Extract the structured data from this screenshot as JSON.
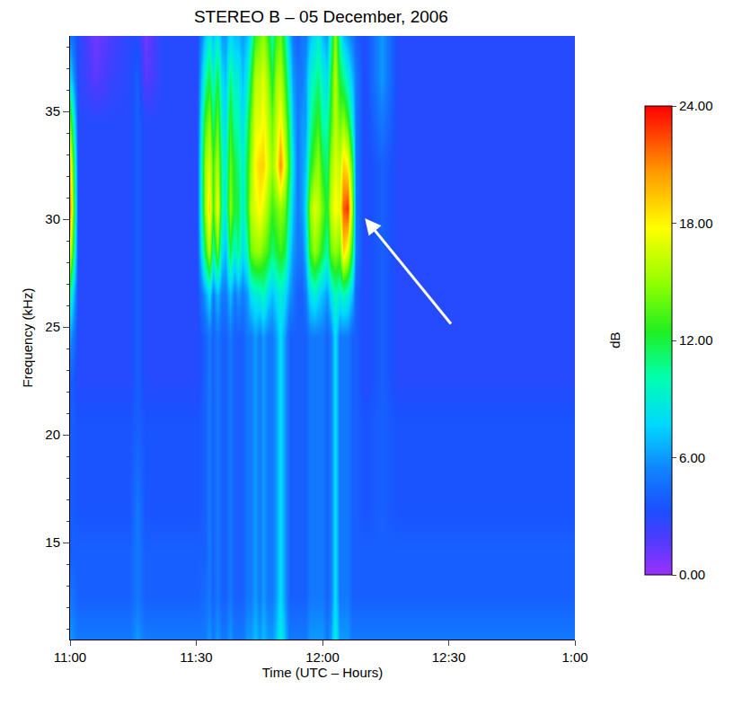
{
  "chart_data": {
    "type": "heatmap",
    "title": "STEREO B – 05 December, 2006",
    "x_label": "Time (UTC – Hours)",
    "y_label": "Frequency (kHz)",
    "x": [
      "2006-12-05 11:00",
      "2006-12-05 11:02",
      "2006-12-05 11:06",
      "2006-12-05 11:10",
      "2006-12-05 11:14",
      "2006-12-05 11:16",
      "2006-12-05 11:18",
      "2006-12-05 11:22",
      "2006-12-05 11:26",
      "2006-12-05 11:30",
      "2006-12-05 11:32",
      "2006-12-05 11:33",
      "2006-12-05 11:34",
      "2006-12-05 11:35",
      "2006-12-05 11:36",
      "2006-12-05 11:37",
      "2006-12-05 11:38",
      "2006-12-05 11:39",
      "2006-12-05 11:40",
      "2006-12-05 11:41",
      "2006-12-05 11:42",
      "2006-12-05 11:43",
      "2006-12-05 11:44",
      "2006-12-05 11:45",
      "2006-12-05 11:46",
      "2006-12-05 11:47",
      "2006-12-05 11:48",
      "2006-12-05 11:49",
      "2006-12-05 11:50",
      "2006-12-05 11:51",
      "2006-12-05 11:52",
      "2006-12-05 11:53",
      "2006-12-05 11:54",
      "2006-12-05 11:55",
      "2006-12-05 11:56",
      "2006-12-05 11:57",
      "2006-12-05 11:58",
      "2006-12-05 11:59",
      "2006-12-05 12:00",
      "2006-12-05 12:01",
      "2006-12-05 12:02",
      "2006-12-05 12:03",
      "2006-12-05 12:04",
      "2006-12-05 12:05",
      "2006-12-05 12:06",
      "2006-12-05 12:07",
      "2006-12-05 12:08",
      "2006-12-05 12:10",
      "2006-12-05 12:14",
      "2006-12-05 12:18",
      "2006-12-05 12:25",
      "2006-12-05 12:30",
      "2006-12-05 12:35",
      "2006-12-05 12:40",
      "2006-12-05 12:45",
      "2006-12-05 12:50",
      "2006-12-05 12:55",
      "2006-12-05 13:00"
    ],
    "y": [
      10.5,
      12.5,
      14.5,
      16.5,
      18.5,
      20.5,
      22.5,
      24.5,
      26.5,
      28.5,
      30.5,
      32.5,
      34.5,
      36.5,
      38.5
    ],
    "z": [
      [
        6,
        5,
        4,
        4,
        4,
        4,
        4,
        6,
        10,
        17,
        21,
        19,
        14,
        8,
        5
      ],
      [
        5,
        4,
        4,
        3.5,
        3.5,
        3.5,
        3,
        3,
        3,
        3,
        3,
        3,
        3,
        3,
        3
      ],
      [
        5,
        4,
        4,
        3.5,
        3.5,
        3.5,
        3,
        3,
        3,
        3,
        3,
        3,
        3,
        1.5,
        1
      ],
      [
        5,
        4,
        4,
        3.5,
        3.5,
        3.5,
        3,
        3,
        3,
        3,
        3,
        3,
        3,
        2.5,
        2
      ],
      [
        5,
        4,
        4,
        3.5,
        3.5,
        3.5,
        3,
        3,
        3,
        3,
        3,
        3,
        3,
        3,
        3
      ],
      [
        6,
        5,
        5,
        5,
        4.5,
        4,
        4,
        4,
        4,
        4,
        4,
        4,
        4,
        4,
        3
      ],
      [
        5,
        4,
        4,
        3.5,
        3.5,
        3.5,
        3,
        3,
        3,
        3,
        3,
        3,
        3,
        1.5,
        1
      ],
      [
        5,
        4,
        4,
        3.5,
        3.5,
        3.5,
        3,
        3,
        3,
        3,
        3,
        3,
        3,
        3,
        3
      ],
      [
        5,
        4,
        4,
        3.5,
        3.5,
        3.5,
        3,
        3,
        3,
        3,
        3,
        3,
        3,
        3,
        3
      ],
      [
        5,
        4,
        4,
        3.5,
        3.5,
        3.5,
        3,
        3,
        3,
        3,
        3,
        3,
        3,
        3,
        3
      ],
      [
        5,
        4.5,
        4,
        4,
        4,
        4,
        4,
        4,
        6,
        12,
        15,
        15,
        13,
        10,
        7
      ],
      [
        6,
        5,
        5,
        5,
        5,
        5,
        5,
        5,
        8,
        16,
        19,
        17,
        15,
        12,
        9
      ],
      [
        5,
        4,
        4,
        4,
        4,
        4,
        4,
        4,
        5,
        10,
        13,
        13,
        11,
        9,
        7
      ],
      [
        6,
        5,
        5,
        5,
        5,
        5,
        5,
        5,
        7,
        14,
        18,
        16,
        14,
        12,
        9
      ],
      [
        5,
        4,
        4,
        4,
        4,
        4,
        4,
        4,
        5,
        8,
        10,
        10,
        9,
        8,
        6
      ],
      [
        5,
        4,
        4,
        4,
        4,
        4,
        4,
        4,
        5,
        7,
        9,
        9,
        8,
        7,
        6
      ],
      [
        6,
        5,
        5,
        5,
        5,
        5,
        5,
        5,
        7,
        12,
        15,
        14,
        13,
        11,
        8
      ],
      [
        5,
        4,
        4,
        4,
        4,
        4,
        4,
        4,
        5,
        9,
        12,
        12,
        10,
        9,
        7
      ],
      [
        5,
        4,
        4,
        4,
        4,
        4,
        4,
        4,
        6,
        11,
        12,
        11,
        10,
        9,
        7
      ],
      [
        5,
        4,
        4,
        4,
        4,
        4,
        4,
        4,
        5,
        8,
        9,
        9,
        8,
        7,
        6
      ],
      [
        6,
        5,
        5,
        5,
        5,
        5,
        5,
        5,
        6,
        10,
        12,
        12,
        11,
        9,
        7
      ],
      [
        6,
        5,
        5,
        5,
        5,
        5,
        5,
        5,
        8,
        14,
        16,
        15,
        14,
        12,
        9
      ],
      [
        7,
        6,
        6,
        6,
        6,
        6,
        6,
        6,
        9,
        15,
        17,
        18,
        17,
        16,
        13
      ],
      [
        6,
        5,
        5,
        5,
        5,
        5,
        5,
        5,
        9,
        15,
        18,
        19,
        17,
        16,
        14
      ],
      [
        7,
        6,
        6,
        6,
        6,
        6,
        6,
        6,
        10,
        14,
        17,
        19,
        18,
        17,
        15
      ],
      [
        6,
        5,
        5,
        5,
        5,
        5,
        5,
        5,
        8,
        13,
        15,
        17,
        16,
        15,
        13
      ],
      [
        6,
        5,
        5,
        5,
        5,
        5,
        5,
        5,
        7,
        11,
        13,
        15,
        14,
        12,
        10
      ],
      [
        7,
        6,
        6,
        6,
        6,
        6,
        6,
        6,
        8,
        12,
        14,
        17,
        16,
        15,
        13
      ],
      [
        9,
        8,
        8,
        8,
        8,
        8,
        8,
        8,
        9,
        13,
        15,
        21,
        18,
        16,
        14
      ],
      [
        7,
        6,
        6,
        6,
        6,
        6,
        6,
        6,
        8,
        12,
        14,
        17,
        15,
        13,
        11
      ],
      [
        5,
        4,
        4,
        4,
        4,
        4,
        4,
        4,
        6,
        8,
        10,
        12,
        11,
        9,
        7
      ],
      [
        5,
        4,
        4,
        4,
        4,
        4,
        4,
        4,
        5,
        6,
        7,
        8,
        7,
        6,
        5
      ],
      [
        5,
        4,
        4,
        4,
        4,
        4,
        4,
        4,
        4,
        5,
        5,
        5,
        5,
        5,
        4
      ],
      [
        5,
        4,
        4,
        4,
        4,
        4,
        4,
        4,
        4,
        5,
        6,
        6,
        6,
        5,
        5
      ],
      [
        5,
        4,
        4,
        4,
        4,
        4,
        4,
        4,
        5,
        7,
        8,
        7,
        6,
        6,
        5
      ],
      [
        6,
        5,
        5,
        5,
        5,
        5,
        5,
        5,
        8,
        13,
        15,
        12,
        10,
        9,
        7
      ],
      [
        6,
        5,
        5,
        5,
        5,
        5,
        5,
        5,
        9,
        15,
        17,
        14,
        12,
        10,
        8
      ],
      [
        6,
        5,
        5,
        5,
        5,
        5,
        5,
        5,
        8,
        14,
        16,
        15,
        13,
        11,
        9
      ],
      [
        6,
        5,
        5,
        5,
        5,
        5,
        5,
        5,
        7,
        12,
        14,
        12,
        10,
        9,
        7
      ],
      [
        5,
        4,
        4,
        4,
        4,
        4,
        4,
        4,
        6,
        10,
        12,
        11,
        10,
        8,
        6
      ],
      [
        6,
        5,
        5,
        5,
        5,
        5,
        5,
        5,
        8,
        14,
        16,
        15,
        13,
        12,
        10
      ],
      [
        9,
        8,
        8,
        8,
        8,
        8,
        8,
        8,
        10,
        15,
        18,
        17,
        16,
        16,
        15
      ],
      [
        6,
        5,
        5,
        5,
        5,
        5,
        5,
        5,
        9,
        14,
        17,
        16,
        14,
        12,
        10
      ],
      [
        6,
        5,
        5,
        5,
        5,
        5,
        5,
        5,
        10,
        19,
        22,
        19,
        15,
        11,
        7
      ],
      [
        6,
        5,
        5,
        5,
        5,
        5,
        5,
        5,
        9,
        17,
        23,
        18,
        13,
        9,
        6
      ],
      [
        5,
        4,
        4,
        4,
        4,
        4,
        4,
        4,
        7,
        12,
        15,
        13,
        9,
        7,
        5
      ],
      [
        5,
        4,
        4,
        4,
        4,
        4,
        4,
        4,
        4,
        5,
        5,
        5,
        5,
        5,
        4
      ],
      [
        5,
        4,
        4,
        3.5,
        3.5,
        3.5,
        3,
        3,
        3,
        3,
        3,
        3,
        3,
        3,
        3
      ],
      [
        5,
        4,
        4,
        4,
        4,
        4,
        4,
        4,
        4,
        4,
        4,
        4,
        5,
        6,
        6
      ],
      [
        5,
        4,
        4,
        3.5,
        3.5,
        3.5,
        3,
        3,
        3,
        3,
        3,
        3,
        3,
        3,
        3
      ],
      [
        5,
        4,
        4,
        3.5,
        3.5,
        3.5,
        3,
        3,
        3,
        3,
        3,
        3,
        3,
        3,
        3
      ],
      [
        5,
        4,
        4,
        3.5,
        3.5,
        3.5,
        3,
        3,
        3,
        3,
        3,
        3,
        3,
        3,
        3
      ],
      [
        5,
        4,
        4,
        3.5,
        3.5,
        3.5,
        3,
        3,
        3,
        3,
        3,
        3,
        3,
        3,
        3
      ],
      [
        5,
        4,
        4,
        3.5,
        3.5,
        3.5,
        3,
        3,
        3,
        3,
        3,
        3,
        3,
        3,
        3
      ],
      [
        5,
        4,
        4,
        3.5,
        3.5,
        3.5,
        3,
        3,
        3,
        3,
        3,
        3,
        3,
        3,
        3
      ],
      [
        5,
        4,
        4,
        3.5,
        3.5,
        3.5,
        3,
        3,
        3,
        3,
        3,
        3,
        3,
        3,
        3
      ],
      [
        5,
        4,
        4,
        3.5,
        3.5,
        3.5,
        3,
        3,
        3,
        3,
        3,
        3,
        3,
        3,
        3
      ],
      [
        5,
        4,
        4,
        3.5,
        3.5,
        3.5,
        3,
        3,
        3,
        3,
        3,
        3,
        3,
        3,
        3
      ]
    ],
    "xlim": [
      "2006-12-05 11:00",
      "2006-12-05 13:00"
    ],
    "xticks": [
      {
        "value": "2006-12-05 11:00",
        "label": "11:00"
      },
      {
        "value": "2006-12-05 11:30",
        "label": "11:30"
      },
      {
        "value": "2006-12-05 12:00",
        "label": "12:00"
      },
      {
        "value": "2006-12-05 12:30",
        "label": "12:30"
      },
      {
        "value": "2006-12-05 13:00",
        "label": "1:00"
      }
    ],
    "ylim": [
      10.5,
      38.5
    ],
    "yticks": [
      15,
      20,
      25,
      30,
      35
    ],
    "colorbar": {
      "title": "dB",
      "range": [
        0,
        24
      ],
      "ticks": [
        {
          "value": 0,
          "label": "0.00"
        },
        {
          "value": 6,
          "label": "6.00"
        },
        {
          "value": 12,
          "label": "12.00"
        },
        {
          "value": 18,
          "label": "18.00"
        },
        {
          "value": 24,
          "label": "24.00"
        }
      ]
    }
  }
}
